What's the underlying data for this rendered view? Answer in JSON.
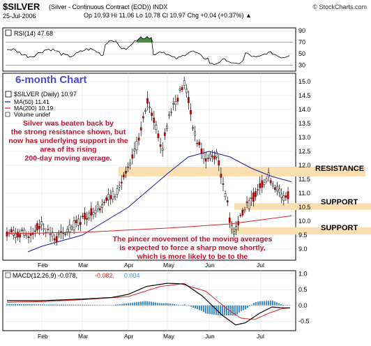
{
  "header": {
    "title": "$SILVER",
    "subtitle": "(Silver - Continuous Contract (EOD)) INDX",
    "brand": "© StockCharts.com",
    "date": "25-Jul-2006",
    "ohlc": "Op 10.93  Hi 11.06  Lo 10.78  Cl 10.97  Chg +0.04 (+0.37%) ▲"
  },
  "rsi_panel": {
    "label": "RSI(14) 47.68",
    "ticks": [
      "90",
      "70",
      "50",
      "30"
    ]
  },
  "main_panel": {
    "big_label": "6-month Chart",
    "legend": {
      "symbol": "$SILVER (Daily) 10.97",
      "ma50": "MA(50) 11.41",
      "ma200": "MA(200) 10.19",
      "volume": "Volume undef"
    },
    "price_ticks": [
      "15.0",
      "14.5",
      "14.0",
      "13.5",
      "13.0",
      "12.5",
      "12.0",
      "11.5",
      "11.0",
      "10.5",
      "10.0",
      "9.5",
      "9.0"
    ],
    "month_labels": [
      "Feb",
      "Mar",
      "Apr",
      "May",
      "Jun",
      "Jul"
    ],
    "annotation_top": "Silver was beaten back by the strong resistance shown, but now has underlying support in the area of its rising 200-day moving average.",
    "annotation_bottom": "The pincer movement of the moving averages is expected to force a sharp move shortly, which is more likely to be to the upside.",
    "zones": {
      "resistance": "RESISTANCE",
      "support1": "SUPPORT",
      "support2": "SUPPORT"
    }
  },
  "macd_panel": {
    "label_main": "MACD(12,26,9) -0.078,",
    "label_signal": "-0.082,",
    "label_hist": "0.004",
    "ticks": [
      "1.0",
      "0.5",
      "0.0",
      "-0.5"
    ],
    "month_labels": [
      "Feb",
      "Mar",
      "Apr",
      "May",
      "Jun",
      "Jul"
    ]
  },
  "colors": {
    "zone": "#f9dfb2",
    "annotation": "#c8102e",
    "ma50": "#1a1aa0",
    "ma200": "#e02020",
    "rsi_fill": "#4a8a4a",
    "macd_hist": "#3d8fd0",
    "big_label": "#4a4ad0"
  },
  "chart_data": [
    {
      "type": "line",
      "title": "RSI(14) 47.68",
      "x": [
        "Feb",
        "Mar",
        "Apr",
        "May",
        "Jun",
        "Jul"
      ],
      "series": [
        {
          "name": "RSI(14)",
          "values": [
            55,
            60,
            75,
            52,
            38,
            48
          ]
        }
      ],
      "ylim": [
        20,
        95
      ],
      "reference_lines": [
        70,
        30
      ]
    },
    {
      "type": "line",
      "title": "$SILVER (Daily) 10.97",
      "x": [
        "Feb",
        "Mar",
        "Apr",
        "May",
        "Jun",
        "Jul"
      ],
      "series": [
        {
          "name": "$SILVER (Daily) 10.97",
          "values": [
            9.6,
            10.1,
            11.8,
            13.0,
            10.3,
            10.97
          ]
        },
        {
          "name": "MA(50) 11.41",
          "values": [
            9.1,
            9.5,
            10.5,
            12.1,
            12.5,
            11.41
          ]
        },
        {
          "name": "MA(200) 10.19",
          "values": [
            9.6,
            9.6,
            9.7,
            9.75,
            9.9,
            10.19
          ]
        }
      ],
      "ylim": [
        8.6,
        15.3
      ],
      "zones": [
        {
          "label": "RESISTANCE",
          "range": [
            11.6,
            11.95
          ]
        },
        {
          "label": "SUPPORT",
          "range": [
            10.4,
            10.65
          ]
        },
        {
          "label": "SUPPORT",
          "range": [
            9.52,
            9.78
          ]
        }
      ]
    },
    {
      "type": "line",
      "title": "MACD(12,26,9) -0.078, -0.082, 0.004",
      "x": [
        "Feb",
        "Mar",
        "Apr",
        "May",
        "Jun",
        "Jul"
      ],
      "series": [
        {
          "name": "MACD(12,26,9)",
          "values": [
            0.15,
            0.2,
            0.35,
            0.7,
            -0.6,
            -0.078
          ]
        },
        {
          "name": "Signal",
          "values": [
            0.1,
            0.18,
            0.3,
            0.65,
            -0.45,
            -0.082
          ]
        },
        {
          "name": "Histogram",
          "values": [
            0.05,
            0.02,
            0.05,
            0.05,
            -0.15,
            0.004
          ]
        }
      ],
      "ylim": [
        -0.8,
        1.1
      ]
    }
  ]
}
